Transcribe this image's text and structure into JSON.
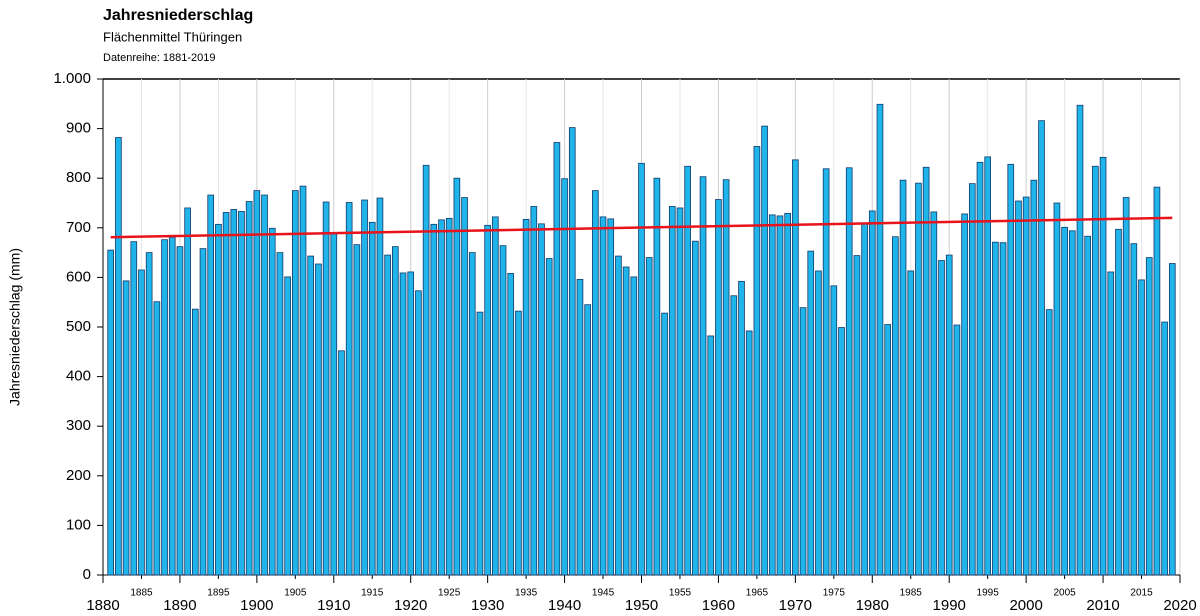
{
  "chart_data": {
    "type": "bar",
    "title": "Jahresniederschlag",
    "subtitle": "Flächenmittel Thüringen",
    "note": "Datenreihe: 1881-2019",
    "y_label": "Jahresniederschlag (mm)",
    "color": "#1fb4ea",
    "grid": true,
    "xlim": [
      1880,
      2020
    ],
    "xticks": [
      1880,
      1890,
      1900,
      1910,
      1920,
      1930,
      1940,
      1950,
      1960,
      1970,
      1980,
      1990,
      2000,
      2010,
      2020
    ],
    "xticks_minor": [
      1885,
      1895,
      1905,
      1915,
      1925,
      1935,
      1945,
      1955,
      1965,
      1975,
      1985,
      1995,
      2005,
      2015
    ],
    "ylim": [
      0,
      1000
    ],
    "yticks": [
      0,
      100,
      200,
      300,
      400,
      500,
      600,
      700,
      800,
      900,
      {
        "value": 1000,
        "label": "1.000"
      }
    ],
    "x": [
      1881,
      1882,
      1883,
      1884,
      1885,
      1886,
      1887,
      1888,
      1889,
      1890,
      1891,
      1892,
      1893,
      1894,
      1895,
      1896,
      1897,
      1898,
      1899,
      1900,
      1901,
      1902,
      1903,
      1904,
      1905,
      1906,
      1907,
      1908,
      1909,
      1910,
      1911,
      1912,
      1913,
      1914,
      1915,
      1916,
      1917,
      1918,
      1919,
      1920,
      1921,
      1922,
      1923,
      1924,
      1925,
      1926,
      1927,
      1928,
      1929,
      1930,
      1931,
      1932,
      1933,
      1934,
      1935,
      1936,
      1937,
      1938,
      1939,
      1940,
      1941,
      1942,
      1943,
      1944,
      1945,
      1946,
      1947,
      1948,
      1949,
      1950,
      1951,
      1952,
      1953,
      1954,
      1955,
      1956,
      1957,
      1958,
      1959,
      1960,
      1961,
      1962,
      1963,
      1964,
      1965,
      1966,
      1967,
      1968,
      1969,
      1970,
      1971,
      1972,
      1973,
      1974,
      1975,
      1976,
      1977,
      1978,
      1979,
      1980,
      1981,
      1982,
      1983,
      1984,
      1985,
      1986,
      1987,
      1988,
      1989,
      1990,
      1991,
      1992,
      1993,
      1994,
      1995,
      1996,
      1997,
      1998,
      1999,
      2000,
      2001,
      2002,
      2003,
      2004,
      2005,
      2006,
      2007,
      2008,
      2009,
      2010,
      2011,
      2012,
      2013,
      2014,
      2015,
      2016,
      2017,
      2018,
      2019
    ],
    "values": [
      655,
      882,
      593,
      672,
      615,
      650,
      551,
      676,
      681,
      662,
      740,
      536,
      658,
      766,
      707,
      731,
      737,
      733,
      753,
      775,
      766,
      699,
      650,
      601,
      775,
      784,
      643,
      627,
      752,
      688,
      452,
      751,
      666,
      756,
      711,
      760,
      645,
      662,
      609,
      611,
      573,
      826,
      707,
      716,
      719,
      800,
      761,
      650,
      530,
      705,
      722,
      664,
      608,
      532,
      717,
      743,
      708,
      638,
      872,
      799,
      902,
      596,
      545,
      775,
      722,
      718,
      643,
      621,
      601,
      830,
      640,
      800,
      528,
      743,
      740,
      824,
      673,
      803,
      482,
      757,
      797,
      563,
      592,
      492,
      864,
      905,
      726,
      724,
      729,
      837,
      539,
      653,
      613,
      819,
      583,
      499,
      821,
      644,
      708,
      734,
      949,
      505,
      682,
      796,
      613,
      790,
      822,
      732,
      634,
      645,
      504,
      728,
      789,
      832,
      843,
      671,
      670,
      828,
      754,
      762,
      796,
      916,
      535,
      750,
      701,
      694,
      947,
      683,
      824,
      842,
      611,
      697,
      761,
      668,
      595,
      640,
      782,
      510,
      628
    ],
    "trend": {
      "color": "#e8131b",
      "x": [
        1881,
        2019
      ],
      "values": [
        681,
        720
      ]
    }
  }
}
